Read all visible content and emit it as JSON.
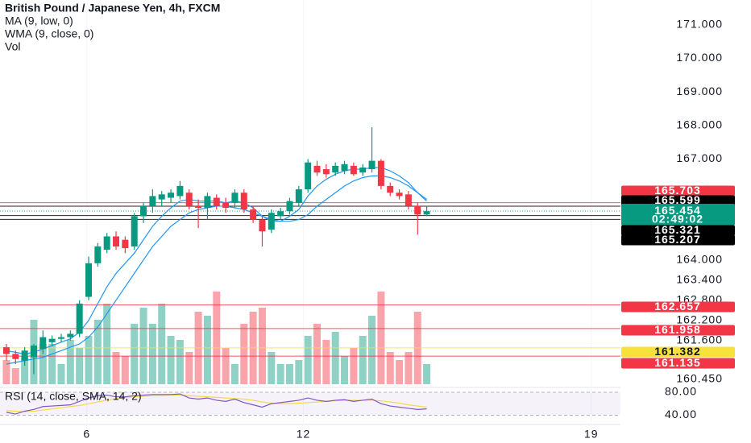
{
  "chart_data": {
    "type": "candlestick",
    "title": "British Pound / Japanese Yen, 4h, FXCM",
    "indicators": [
      "MA (9, low, 0)",
      "WMA (9, close, 0)",
      "Vol"
    ],
    "up_color": "#089981",
    "down_color": "#f23645",
    "open": [
      161.4,
      161.2,
      161.0,
      161.1,
      161.35,
      161.55,
      161.65,
      161.7,
      161.8,
      162.9,
      163.9,
      164.3,
      164.7,
      164.6,
      164.4,
      165.3,
      165.6,
      165.8,
      165.85,
      165.9,
      166.0,
      165.6,
      165.55,
      165.85,
      165.7,
      165.7,
      166.0,
      165.5,
      165.2,
      164.9,
      165.3,
      165.45,
      165.7,
      166.1,
      166.8,
      166.7,
      166.6,
      166.65,
      166.8,
      166.6,
      166.7,
      166.95,
      166.2,
      166.0,
      165.95,
      165.6,
      165.35
    ],
    "high": [
      161.5,
      161.3,
      161.4,
      161.5,
      161.9,
      161.75,
      161.8,
      161.9,
      162.8,
      164.1,
      164.5,
      164.8,
      164.85,
      164.7,
      165.4,
      165.7,
      166.1,
      166.05,
      166.1,
      166.35,
      166.1,
      165.8,
      166.0,
      165.95,
      165.85,
      166.1,
      166.1,
      165.6,
      165.3,
      165.5,
      165.55,
      165.85,
      166.2,
      167.0,
      166.95,
      166.85,
      166.9,
      166.95,
      166.9,
      166.85,
      167.95,
      167.0,
      166.3,
      166.1,
      166.05,
      165.7,
      165.6
    ],
    "low": [
      161.0,
      160.9,
      160.85,
      160.6,
      161.2,
      161.45,
      161.55,
      161.6,
      161.7,
      162.8,
      163.8,
      164.2,
      164.3,
      164.2,
      164.3,
      165.1,
      165.4,
      165.6,
      165.7,
      165.8,
      165.5,
      164.95,
      165.2,
      165.5,
      165.4,
      165.55,
      165.4,
      165.1,
      164.4,
      164.8,
      165.2,
      165.35,
      165.6,
      166.0,
      166.5,
      166.45,
      166.5,
      166.55,
      166.5,
      166.5,
      166.6,
      166.1,
      165.9,
      165.8,
      165.5,
      164.75,
      165.3
    ],
    "close": [
      161.2,
      161.05,
      161.3,
      161.45,
      161.7,
      161.65,
      161.7,
      161.8,
      162.7,
      163.9,
      164.4,
      164.7,
      164.4,
      164.35,
      165.3,
      165.6,
      165.9,
      165.95,
      166.0,
      166.2,
      165.6,
      165.55,
      165.9,
      165.6,
      165.55,
      166.0,
      165.5,
      165.2,
      164.85,
      165.4,
      165.45,
      165.75,
      166.1,
      166.9,
      166.6,
      166.55,
      166.8,
      166.85,
      166.55,
      166.75,
      166.95,
      166.2,
      166.0,
      165.9,
      165.6,
      165.35,
      165.45
    ],
    "volume": [
      30,
      20,
      35,
      80,
      50,
      50,
      25,
      55,
      45,
      60,
      80,
      100,
      40,
      35,
      75,
      95,
      75,
      100,
      60,
      55,
      40,
      90,
      85,
      115,
      45,
      25,
      75,
      90,
      95,
      40,
      25,
      25,
      30,
      60,
      75,
      55,
      65,
      35,
      45,
      60,
      85,
      115,
      40,
      30,
      40,
      90,
      25
    ],
    "ma_color": "#2196f3",
    "ma": [
      160.9,
      160.95,
      161.0,
      161.05,
      161.1,
      161.2,
      161.3,
      161.4,
      161.5,
      161.7,
      162.0,
      162.4,
      162.8,
      163.2,
      163.6,
      164.0,
      164.4,
      164.7,
      165.0,
      165.2,
      165.4,
      165.5,
      165.55,
      165.6,
      165.6,
      165.55,
      165.5,
      165.4,
      165.3,
      165.2,
      165.15,
      165.15,
      165.2,
      165.35,
      165.6,
      165.8,
      166.0,
      166.2,
      166.35,
      166.45,
      166.5,
      166.5,
      166.45,
      166.35,
      166.2,
      166.0,
      165.8
    ],
    "wma": [
      161.3,
      161.25,
      161.2,
      161.25,
      161.35,
      161.45,
      161.55,
      161.65,
      161.85,
      162.2,
      162.7,
      163.2,
      163.6,
      163.9,
      164.2,
      164.6,
      165.0,
      165.3,
      165.55,
      165.75,
      165.8,
      165.75,
      165.75,
      165.75,
      165.7,
      165.75,
      165.7,
      165.55,
      165.3,
      165.15,
      165.15,
      165.3,
      165.5,
      165.9,
      166.2,
      166.4,
      166.55,
      166.65,
      166.7,
      166.7,
      166.75,
      166.75,
      166.65,
      166.5,
      166.3,
      166.0,
      165.75
    ],
    "ylim": [
      160.3,
      171.4
    ],
    "yticks": [
      {
        "value": 171,
        "label": "171.000"
      },
      {
        "value": 170,
        "label": "170.000"
      },
      {
        "value": 169,
        "label": "169.000"
      },
      {
        "value": 168,
        "label": "168.000"
      },
      {
        "value": 167,
        "label": "167.000"
      },
      {
        "value": 164,
        "label": "164.000"
      },
      {
        "value": 163.4,
        "label": "163.400"
      },
      {
        "value": 162.8,
        "label": "162.800"
      },
      {
        "value": 162.2,
        "label": "162.200"
      },
      {
        "value": 161.6,
        "label": "161.600"
      },
      {
        "value": 160.45,
        "label": "160.450"
      }
    ],
    "xlim": [
      -0.7,
      67.2
    ],
    "xticks": [
      {
        "value": 8.8,
        "label": "6"
      },
      {
        "value": 32.5,
        "label": "12"
      },
      {
        "value": 64,
        "label": "19"
      }
    ],
    "price_lines": [
      {
        "value": 165.703,
        "color": "#f23645"
      },
      {
        "value": 165.599,
        "color": "#000000"
      },
      {
        "value": 165.454,
        "color": "#089981"
      },
      {
        "value": 165.321,
        "color": "#000000"
      },
      {
        "value": 165.207,
        "color": "#000000"
      },
      {
        "value": 162.657,
        "color": "#f23645"
      },
      {
        "value": 161.958,
        "color": "#f23645"
      },
      {
        "value": 161.382,
        "color": "#f7e23b"
      },
      {
        "value": 161.135,
        "color": "#f23645"
      }
    ],
    "timer": "02:49:02",
    "rsi": {
      "title": "RSI (14, close, SMA, 14, 2)",
      "color": "#7e57c2",
      "sma_color": "#f5d94a",
      "values": [
        45,
        42,
        47,
        50,
        55,
        56,
        57,
        58,
        64,
        70,
        74,
        75,
        72,
        72,
        74,
        75,
        76,
        76,
        76,
        77,
        70,
        68,
        70,
        66,
        64,
        68,
        62,
        58,
        54,
        60,
        62,
        64,
        66,
        70,
        66,
        64,
        66,
        67,
        64,
        66,
        68,
        60,
        56,
        54,
        52,
        50,
        51
      ],
      "sma": [
        48,
        47,
        46,
        47,
        49,
        51,
        53,
        55,
        57,
        60,
        63,
        66,
        69,
        71,
        72,
        73,
        74,
        74,
        75,
        75,
        74,
        73,
        72,
        71,
        70,
        69,
        68,
        66,
        63,
        61,
        60,
        60,
        61,
        62,
        63,
        64,
        65,
        66,
        66,
        66,
        66,
        65,
        63,
        61,
        58,
        56,
        54
      ],
      "ylim": [
        28,
        87
      ],
      "yticks": [
        {
          "value": 80,
          "label": "80.00"
        },
        {
          "value": 40,
          "label": "40.00"
        }
      ]
    }
  }
}
